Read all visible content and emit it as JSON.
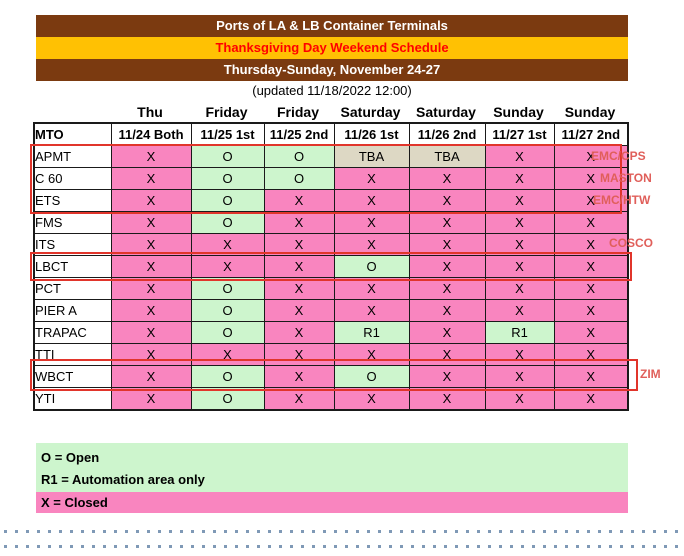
{
  "header": {
    "title": "Ports of LA & LB Container Terminals",
    "subtitle": "Thanksgiving Day Weekend Schedule",
    "date_range": "Thursday-Sunday, November 24-27",
    "updated": "(updated 11/18/2022 12:00)"
  },
  "colors": {
    "header_brown": "#7B3A10",
    "header_gold": "#FFC103",
    "subtitle_red": "#FF0000",
    "closed_pink": "#F985BF",
    "open_green": "#CDF5CD",
    "tba_tan": "#DDD8C4",
    "highlight_red": "#E1352B",
    "annotation_red": "#E05F5A"
  },
  "table": {
    "day_row": [
      "",
      "Thu",
      "Friday",
      "Friday",
      "Saturday",
      "Saturday",
      "Sunday",
      "Sunday"
    ],
    "columns": [
      "MTO",
      "11/24 Both",
      "11/25 1st",
      "11/25 2nd",
      "11/26 1st",
      "11/26 2nd",
      "11/27 1st",
      "11/27 2nd"
    ],
    "rows": [
      {
        "mto": "APMT",
        "cells": [
          "X",
          "O",
          "O",
          "TBA",
          "TBA",
          "X",
          "X"
        ]
      },
      {
        "mto": "C 60",
        "cells": [
          "X",
          "O",
          "O",
          "X",
          "X",
          "X",
          "X"
        ]
      },
      {
        "mto": "ETS",
        "cells": [
          "X",
          "O",
          "X",
          "X",
          "X",
          "X",
          "X"
        ]
      },
      {
        "mto": "FMS",
        "cells": [
          "X",
          "O",
          "X",
          "X",
          "X",
          "X",
          "X"
        ]
      },
      {
        "mto": "ITS",
        "cells": [
          "X",
          "X",
          "X",
          "X",
          "X",
          "X",
          "X"
        ]
      },
      {
        "mto": "LBCT",
        "cells": [
          "X",
          "X",
          "X",
          "O",
          "X",
          "X",
          "X"
        ]
      },
      {
        "mto": "PCT",
        "cells": [
          "X",
          "O",
          "X",
          "X",
          "X",
          "X",
          "X"
        ]
      },
      {
        "mto": "PIER A",
        "cells": [
          "X",
          "O",
          "X",
          "X",
          "X",
          "X",
          "X"
        ]
      },
      {
        "mto": "TRAPAC",
        "cells": [
          "X",
          "O",
          "X",
          "R1",
          "X",
          "R1",
          "X"
        ]
      },
      {
        "mto": "TTI",
        "cells": [
          "X",
          "X",
          "X",
          "X",
          "X",
          "X",
          "X"
        ]
      },
      {
        "mto": "WBCT",
        "cells": [
          "X",
          "O",
          "X",
          "O",
          "X",
          "X",
          "X"
        ]
      },
      {
        "mto": "YTI",
        "cells": [
          "X",
          "O",
          "X",
          "X",
          "X",
          "X",
          "X"
        ]
      }
    ]
  },
  "annotations": [
    {
      "label": "EMC/CPS",
      "row": "APMT"
    },
    {
      "label": "MASTON",
      "row": "C 60"
    },
    {
      "label": "EMC/HTW",
      "row": "ETS"
    },
    {
      "label": "COSCO",
      "row": "ITS"
    },
    {
      "label": "ZIM",
      "row": "WBCT"
    }
  ],
  "legend": {
    "open_lines": [
      "O = Open",
      "R1 = Automation area only"
    ],
    "closed_line": "X = Closed"
  }
}
